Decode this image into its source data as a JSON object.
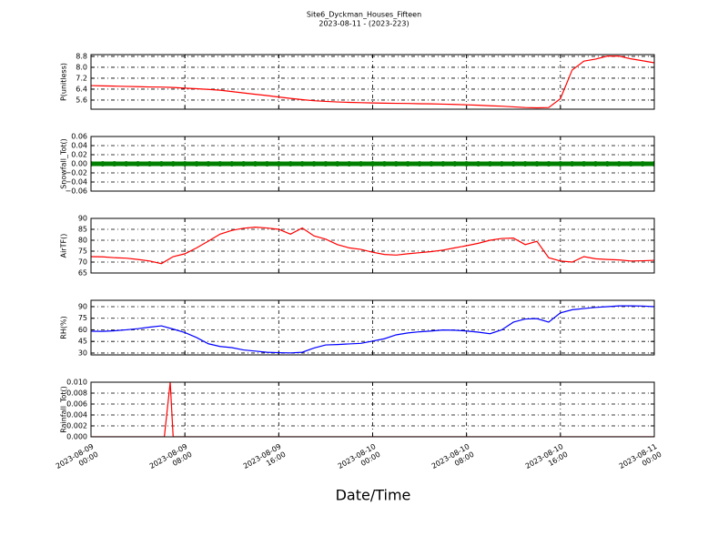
{
  "title": "Site6_Dyckman_Houses_Fifteen",
  "subtitle": "2023-08-11 - (2023-223)",
  "x_label": "Date/Time",
  "x": [
    "2023-08-09 00:00",
    "2023-08-09 01:00",
    "2023-08-09 02:00",
    "2023-08-09 03:00",
    "2023-08-09 04:00",
    "2023-08-09 05:00",
    "2023-08-09 06:00",
    "2023-08-09 07:00",
    "2023-08-09 08:00",
    "2023-08-09 09:00",
    "2023-08-09 10:00",
    "2023-08-09 11:00",
    "2023-08-09 12:00",
    "2023-08-09 13:00",
    "2023-08-09 14:00",
    "2023-08-09 15:00",
    "2023-08-09 16:00",
    "2023-08-09 17:00",
    "2023-08-09 18:00",
    "2023-08-09 19:00",
    "2023-08-09 20:00",
    "2023-08-09 21:00",
    "2023-08-09 22:00",
    "2023-08-09 23:00",
    "2023-08-10 00:00",
    "2023-08-10 01:00",
    "2023-08-10 02:00",
    "2023-08-10 03:00",
    "2023-08-10 04:00",
    "2023-08-10 05:00",
    "2023-08-10 06:00",
    "2023-08-10 07:00",
    "2023-08-10 08:00",
    "2023-08-10 09:00",
    "2023-08-10 10:00",
    "2023-08-10 11:00",
    "2023-08-10 12:00",
    "2023-08-10 13:00",
    "2023-08-10 14:00",
    "2023-08-10 15:00",
    "2023-08-10 16:00",
    "2023-08-10 17:00",
    "2023-08-10 18:00",
    "2023-08-10 19:00",
    "2023-08-10 20:00",
    "2023-08-10 21:00",
    "2023-08-10 22:00",
    "2023-08-10 23:00",
    "2023-08-11 00:00"
  ],
  "xlim": [
    "2023-08-09 00:00",
    "2023-08-11 00:00"
  ],
  "xticks": [
    {
      "value": "2023-08-09 00:00",
      "label": "2023-08-09\n00:00"
    },
    {
      "value": "2023-08-09 08:00",
      "label": "2023-08-09\n08:00"
    },
    {
      "value": "2023-08-09 16:00",
      "label": "2023-08-09\n16:00"
    },
    {
      "value": "2023-08-10 00:00",
      "label": "2023-08-10\n00:00"
    },
    {
      "value": "2023-08-10 08:00",
      "label": "2023-08-10\n08:00"
    },
    {
      "value": "2023-08-10 16:00",
      "label": "2023-08-10\n16:00"
    },
    {
      "value": "2023-08-11 00:00",
      "label": "2023-08-11\n00:00"
    }
  ],
  "chart_data": [
    {
      "type": "line",
      "y_label": "P(unitless)",
      "color": "#ff0000",
      "grid": true,
      "ylim": [
        4.93,
        8.93
      ],
      "yticks": [
        {
          "value": 5.6,
          "label": "5.6"
        },
        {
          "value": 6.4,
          "label": "6.4"
        },
        {
          "value": 7.2,
          "label": "7.2"
        },
        {
          "value": 8.0,
          "label": "8.0"
        },
        {
          "value": 8.8,
          "label": "8.8"
        }
      ],
      "values": [
        6.66,
        6.64,
        6.62,
        6.6,
        6.58,
        6.56,
        6.55,
        6.52,
        6.47,
        6.43,
        6.38,
        6.32,
        6.22,
        6.12,
        6.02,
        5.93,
        5.82,
        5.72,
        5.63,
        5.55,
        5.5,
        5.46,
        5.43,
        5.41,
        5.39,
        5.37,
        5.36,
        5.35,
        5.33,
        5.32,
        5.3,
        5.28,
        5.25,
        5.22,
        5.18,
        5.15,
        5.1,
        5.05,
        5.03,
        5.05,
        5.7,
        7.8,
        8.45,
        8.6,
        8.82,
        8.82,
        8.62,
        8.48,
        8.33
      ]
    },
    {
      "type": "line",
      "y_label": "Snowfall_Tot()",
      "color": "#008000",
      "marker": true,
      "grid": true,
      "ylim": [
        -0.06,
        0.06
      ],
      "yticks": [
        {
          "value": -0.06,
          "label": "−0.06"
        },
        {
          "value": -0.04,
          "label": "−0.04"
        },
        {
          "value": -0.02,
          "label": "−0.02"
        },
        {
          "value": 0,
          "label": "0.00"
        },
        {
          "value": 0.02,
          "label": "0.02"
        },
        {
          "value": 0.04,
          "label": "0.04"
        },
        {
          "value": 0.06,
          "label": "0.06"
        }
      ],
      "values": [
        0,
        0,
        0,
        0,
        0,
        0,
        0,
        0,
        0,
        0,
        0,
        0,
        0,
        0,
        0,
        0,
        0,
        0,
        0,
        0,
        0,
        0,
        0,
        0,
        0,
        0,
        0,
        0,
        0,
        0,
        0,
        0,
        0,
        0,
        0,
        0,
        0,
        0,
        0,
        0,
        0,
        0,
        0,
        0,
        0,
        0,
        0,
        0,
        0
      ]
    },
    {
      "type": "line",
      "y_label": "AirTF()",
      "color": "#ff0000",
      "grid": true,
      "ylim": [
        65,
        90
      ],
      "yticks": [
        65,
        70,
        75,
        80,
        85,
        90
      ],
      "values": [
        72.5,
        72.4,
        72.0,
        71.8,
        71.2,
        70.5,
        69.3,
        72.5,
        73.8,
        76.5,
        79.6,
        82.8,
        84.5,
        85.5,
        86.0,
        85.6,
        85.0,
        82.8,
        85.6,
        82.0,
        80.5,
        78.0,
        76.5,
        75.8,
        74.5,
        73.5,
        73.2,
        73.8,
        74.3,
        74.8,
        75.5,
        76.5,
        77.5,
        78.6,
        80.0,
        80.8,
        81.0,
        78.0,
        79.5,
        72.0,
        70.5,
        70.0,
        72.5,
        71.5,
        71.2,
        71.0,
        70.5,
        70.6,
        70.8
      ]
    },
    {
      "type": "line",
      "y_label": "RH(%)",
      "color": "#0000ff",
      "grid": true,
      "ylim": [
        27.6,
        98.2
      ],
      "yticks": [
        30,
        45,
        60,
        75,
        90
      ],
      "values": [
        58.2,
        58.0,
        58.8,
        60.0,
        61.5,
        63.5,
        65.2,
        61.0,
        56.5,
        50.0,
        42.0,
        38.5,
        37.0,
        34.0,
        32.5,
        31.0,
        30.5,
        30.2,
        31.0,
        36.5,
        40.5,
        41.0,
        41.8,
        42.5,
        45.5,
        48.5,
        53.5,
        56.0,
        57.5,
        58.5,
        59.8,
        59.5,
        58.5,
        57.0,
        55.0,
        60.0,
        70.0,
        74.0,
        74.5,
        70.0,
        82.0,
        86.0,
        87.5,
        89.0,
        90.0,
        91.0,
        91.0,
        90.8,
        90.0
      ]
    },
    {
      "type": "line",
      "y_label": "Rainfall_Tot()",
      "color": "#ff0000",
      "grid": true,
      "ylim": [
        0,
        0.01
      ],
      "yticks": [
        {
          "value": 0,
          "label": "0.000"
        },
        {
          "value": 0.002,
          "label": "0.002"
        },
        {
          "value": 0.004,
          "label": "0.004"
        },
        {
          "value": 0.006,
          "label": "0.006"
        },
        {
          "value": 0.008,
          "label": "0.008"
        },
        {
          "value": 0.01,
          "label": "0.010"
        }
      ],
      "x": [
        "2023-08-09 00:00",
        "2023-08-09 06:15",
        "2023-08-09 06:45",
        "2023-08-09 07:00",
        "2023-08-11 00:00"
      ],
      "values": [
        0,
        0,
        0.01,
        0,
        0
      ]
    }
  ]
}
